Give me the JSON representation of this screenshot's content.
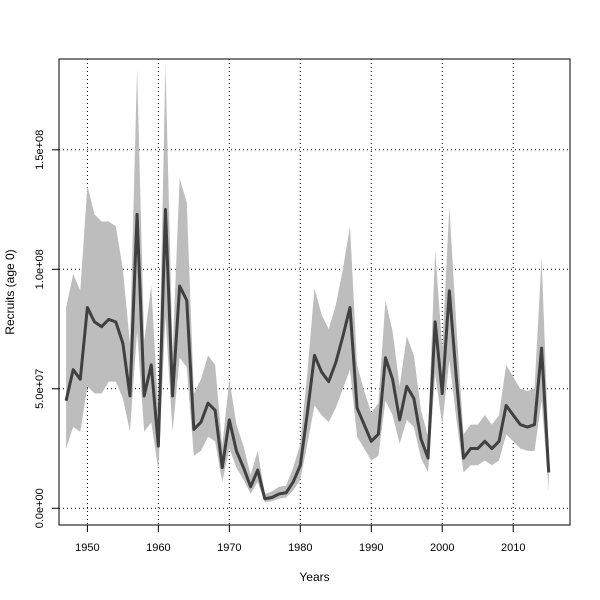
{
  "chart_data": {
    "type": "area",
    "title": "",
    "xlabel": "Years",
    "ylabel": "Recruits (age 0)",
    "xlim": [
      1946,
      2018
    ],
    "ylim": [
      -7000000,
      188000000
    ],
    "grid": true,
    "x_ticks": [
      1950,
      1960,
      1970,
      1980,
      1990,
      2000,
      2010
    ],
    "x_tick_labels": [
      "1950",
      "1960",
      "1970",
      "1980",
      "1990",
      "2000",
      "2010"
    ],
    "y_ticks": [
      0,
      50000000,
      100000000,
      150000000
    ],
    "y_tick_labels": [
      "0.0e+00",
      "5.0e+07",
      "1.0e+08",
      "1.5e+08"
    ],
    "x": [
      1947,
      1948,
      1949,
      1950,
      1951,
      1952,
      1953,
      1954,
      1955,
      1956,
      1957,
      1958,
      1959,
      1960,
      1961,
      1962,
      1963,
      1964,
      1965,
      1966,
      1967,
      1968,
      1969,
      1970,
      1971,
      1972,
      1973,
      1974,
      1975,
      1976,
      1977,
      1978,
      1979,
      1980,
      1981,
      1982,
      1983,
      1984,
      1985,
      1986,
      1987,
      1988,
      1989,
      1990,
      1991,
      1992,
      1993,
      1994,
      1995,
      1996,
      1997,
      1998,
      1999,
      2000,
      2001,
      2002,
      2003,
      2004,
      2005,
      2006,
      2007,
      2008,
      2009,
      2010,
      2011,
      2012,
      2013,
      2014,
      2015
    ],
    "series": [
      {
        "values": [
          45000000,
          58000000,
          54000000,
          84000000,
          78000000,
          76000000,
          79000000,
          78000000,
          69000000,
          47000000,
          123000000,
          47000000,
          60000000,
          26000000,
          125000000,
          47000000,
          93000000,
          87000000,
          33000000,
          36000000,
          44000000,
          41000000,
          17000000,
          37000000,
          24000000,
          17000000,
          9000000,
          16000000,
          4000000,
          4500000,
          6000000,
          6500000,
          11000000,
          18000000,
          40000000,
          64000000,
          57000000,
          53000000,
          61000000,
          72000000,
          84000000,
          42000000,
          35000000,
          28000000,
          31000000,
          63000000,
          54000000,
          37000000,
          51000000,
          46000000,
          29000000,
          21000000,
          78000000,
          48000000,
          91000000,
          54000000,
          21000000,
          25000000,
          25000000,
          28000000,
          25000000,
          28000000,
          43000000,
          39000000,
          35000000,
          34000000,
          35000000,
          67000000,
          15000000
        ],
        "lower": [
          25000000,
          34000000,
          32000000,
          51000000,
          48000000,
          48000000,
          53000000,
          53000000,
          46000000,
          32000000,
          74000000,
          32000000,
          36000000,
          16000000,
          80000000,
          32000000,
          63000000,
          59000000,
          22000000,
          24000000,
          30000000,
          28000000,
          11000000,
          25000000,
          17000000,
          12000000,
          6000000,
          11000000,
          2500000,
          3000000,
          4000000,
          4500000,
          7500000,
          12000000,
          27000000,
          43000000,
          39000000,
          36000000,
          42000000,
          50000000,
          58000000,
          30000000,
          25000000,
          20000000,
          22000000,
          45000000,
          39000000,
          27000000,
          37000000,
          34000000,
          21000000,
          15000000,
          56000000,
          35000000,
          62000000,
          37000000,
          15000000,
          18000000,
          18000000,
          20000000,
          18000000,
          20000000,
          31000000,
          28000000,
          25000000,
          24000000,
          24000000,
          45000000,
          7000000
        ],
        "upper": [
          84000000,
          98000000,
          91000000,
          135000000,
          123000000,
          120000000,
          120000000,
          118000000,
          100000000,
          69000000,
          184000000,
          70000000,
          93000000,
          40000000,
          186000000,
          65000000,
          138000000,
          128000000,
          48000000,
          54000000,
          64000000,
          60000000,
          26000000,
          54000000,
          35000000,
          26000000,
          14000000,
          24000000,
          6000000,
          7000000,
          9000000,
          9500000,
          17000000,
          27000000,
          57000000,
          92000000,
          81000000,
          75000000,
          85000000,
          100000000,
          118000000,
          60000000,
          49000000,
          40000000,
          44000000,
          87000000,
          74000000,
          51000000,
          72000000,
          64000000,
          41000000,
          30000000,
          108000000,
          67000000,
          126000000,
          76000000,
          31000000,
          35000000,
          35000000,
          39000000,
          35000000,
          39000000,
          60000000,
          55000000,
          50000000,
          49000000,
          50000000,
          105000000,
          24000000
        ]
      }
    ],
    "colors": {
      "band": "#bdbdbd",
      "line": "#404040",
      "grid": "#000000",
      "axes": "#000000"
    }
  }
}
